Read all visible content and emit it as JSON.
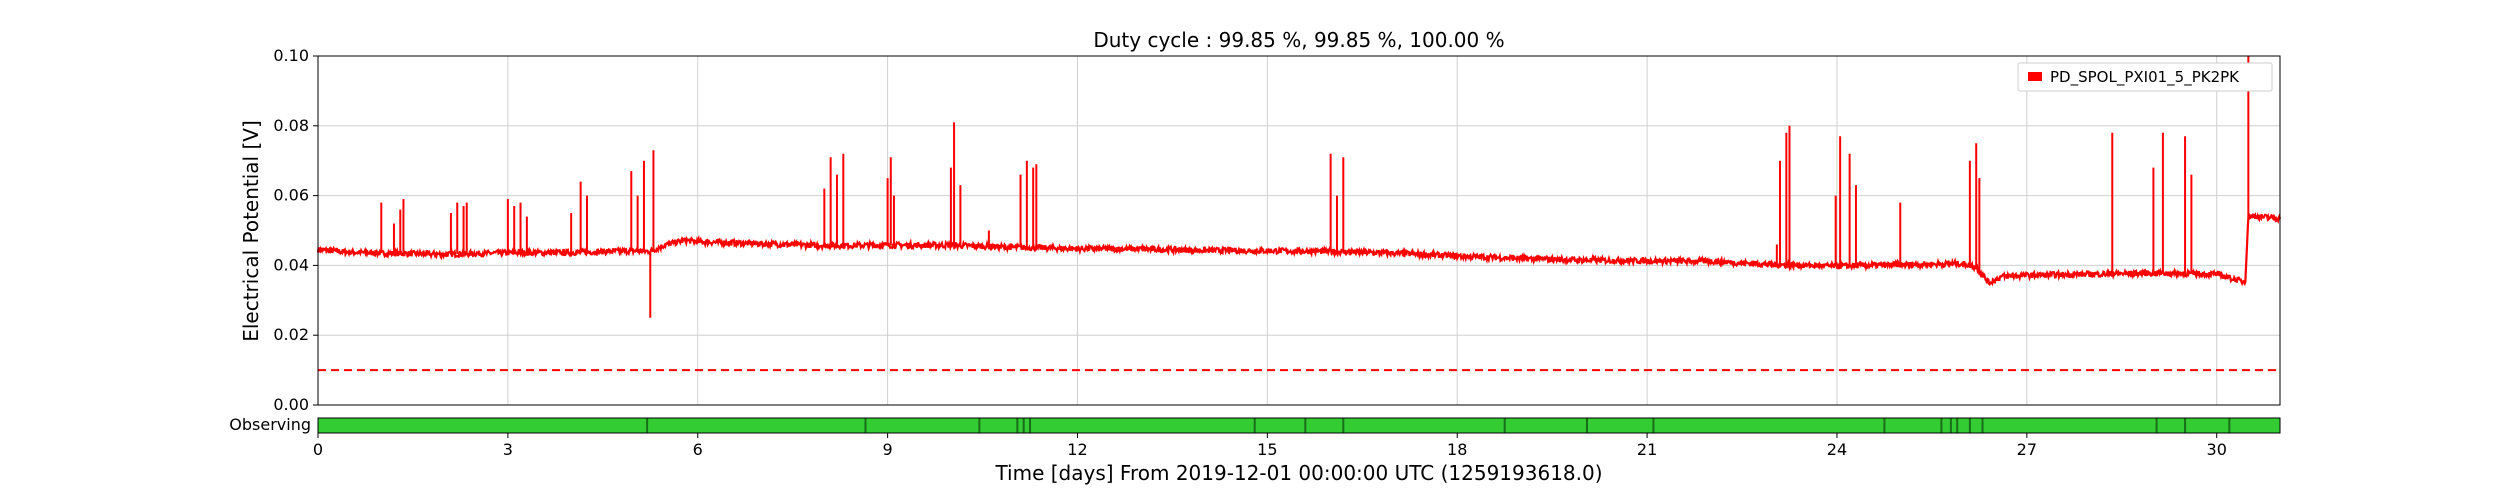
{
  "chart_data": {
    "type": "line",
    "title": "Duty cycle : 99.85 %, 99.85 %, 100.00 %",
    "xlabel": "Time [days] From 2019-12-01 00:00:00 UTC (1259193618.0)",
    "ylabel": "Electrical Potential [V]",
    "xlim": [
      0,
      31
    ],
    "ylim": [
      0,
      0.1
    ],
    "xticks": [
      0,
      3,
      6,
      9,
      12,
      15,
      18,
      21,
      24,
      27,
      30
    ],
    "yticks": [
      0.0,
      0.02,
      0.04,
      0.06,
      0.08,
      0.1
    ],
    "ytick_labels": [
      "0.00",
      "0.02",
      "0.04",
      "0.06",
      "0.08",
      "0.10"
    ],
    "grid": true,
    "legend_position": "top-right",
    "series": [
      {
        "name": "PD_SPOL_PXI01_5_PK2PK",
        "color": "#ff0000",
        "baseline": [
          [
            0,
            0.0445
          ],
          [
            0.5,
            0.0438
          ],
          [
            1.0,
            0.0435
          ],
          [
            2.0,
            0.0432
          ],
          [
            3.0,
            0.0436
          ],
          [
            4.0,
            0.0437
          ],
          [
            5.0,
            0.0442
          ],
          [
            5.25,
            0.044
          ],
          [
            5.5,
            0.046
          ],
          [
            5.8,
            0.0472
          ],
          [
            6.0,
            0.0468
          ],
          [
            7.0,
            0.0462
          ],
          [
            8.0,
            0.0457
          ],
          [
            9.0,
            0.0458
          ],
          [
            10.0,
            0.0458
          ],
          [
            11.0,
            0.0452
          ],
          [
            12.0,
            0.0448
          ],
          [
            13.0,
            0.0447
          ],
          [
            14.0,
            0.0443
          ],
          [
            15.0,
            0.0442
          ],
          [
            16.0,
            0.044
          ],
          [
            17.0,
            0.0435
          ],
          [
            18.0,
            0.0427
          ],
          [
            19.0,
            0.042
          ],
          [
            20.0,
            0.0415
          ],
          [
            21.0,
            0.0413
          ],
          [
            22.0,
            0.0412
          ],
          [
            23.0,
            0.0402
          ],
          [
            24.0,
            0.0398
          ],
          [
            25.0,
            0.0402
          ],
          [
            26.0,
            0.0405
          ],
          [
            26.2,
            0.0395
          ],
          [
            26.4,
            0.035
          ],
          [
            26.6,
            0.0368
          ],
          [
            27.0,
            0.0372
          ],
          [
            28.0,
            0.0375
          ],
          [
            29.0,
            0.0378
          ],
          [
            30.0,
            0.0375
          ],
          [
            30.45,
            0.0352
          ],
          [
            30.5,
            0.0542
          ],
          [
            31.0,
            0.0535
          ]
        ],
        "spikes": [
          [
            1.0,
            0.058
          ],
          [
            1.2,
            0.052
          ],
          [
            1.3,
            0.056
          ],
          [
            1.35,
            0.059
          ],
          [
            2.1,
            0.055
          ],
          [
            2.2,
            0.058
          ],
          [
            2.3,
            0.057
          ],
          [
            2.35,
            0.058
          ],
          [
            3.0,
            0.059
          ],
          [
            3.1,
            0.057
          ],
          [
            3.2,
            0.058
          ],
          [
            3.3,
            0.054
          ],
          [
            4.0,
            0.055
          ],
          [
            4.15,
            0.064
          ],
          [
            4.25,
            0.06
          ],
          [
            4.95,
            0.067
          ],
          [
            5.05,
            0.06
          ],
          [
            5.15,
            0.07
          ],
          [
            5.25,
            0.025
          ],
          [
            5.3,
            0.073
          ],
          [
            8.0,
            0.062
          ],
          [
            8.1,
            0.071
          ],
          [
            8.2,
            0.066
          ],
          [
            8.3,
            0.072
          ],
          [
            9.0,
            0.065
          ],
          [
            9.05,
            0.071
          ],
          [
            9.1,
            0.06
          ],
          [
            10.0,
            0.068
          ],
          [
            10.05,
            0.081
          ],
          [
            10.15,
            0.063
          ],
          [
            10.6,
            0.05
          ],
          [
            11.1,
            0.066
          ],
          [
            11.2,
            0.07
          ],
          [
            11.3,
            0.068
          ],
          [
            11.35,
            0.069
          ],
          [
            16.0,
            0.072
          ],
          [
            16.1,
            0.06
          ],
          [
            16.2,
            0.071
          ],
          [
            23.05,
            0.046
          ],
          [
            23.1,
            0.07
          ],
          [
            23.2,
            0.078
          ],
          [
            23.25,
            0.08
          ],
          [
            23.98,
            0.06
          ],
          [
            24.05,
            0.077
          ],
          [
            24.2,
            0.072
          ],
          [
            24.3,
            0.063
          ],
          [
            25.0,
            0.058
          ],
          [
            26.1,
            0.07
          ],
          [
            26.2,
            0.075
          ],
          [
            26.25,
            0.065
          ],
          [
            28.35,
            0.078
          ],
          [
            29.0,
            0.068
          ],
          [
            29.15,
            0.078
          ],
          [
            29.5,
            0.077
          ],
          [
            29.6,
            0.066
          ],
          [
            30.5,
            0.1
          ]
        ]
      }
    ],
    "threshold": {
      "value": 0.01,
      "color": "#ff0000",
      "style": "dashed"
    },
    "state_bar": {
      "label": "Observing",
      "color": "#33cc33",
      "gap_color": "#1a6e1a",
      "gaps": [
        5.2,
        8.65,
        10.45,
        11.05,
        11.15,
        11.25,
        14.8,
        15.6,
        16.2,
        18.75,
        20.05,
        21.1,
        24.75,
        25.65,
        25.8,
        25.9,
        26.1,
        26.3,
        29.05,
        29.5,
        30.2
      ]
    }
  }
}
